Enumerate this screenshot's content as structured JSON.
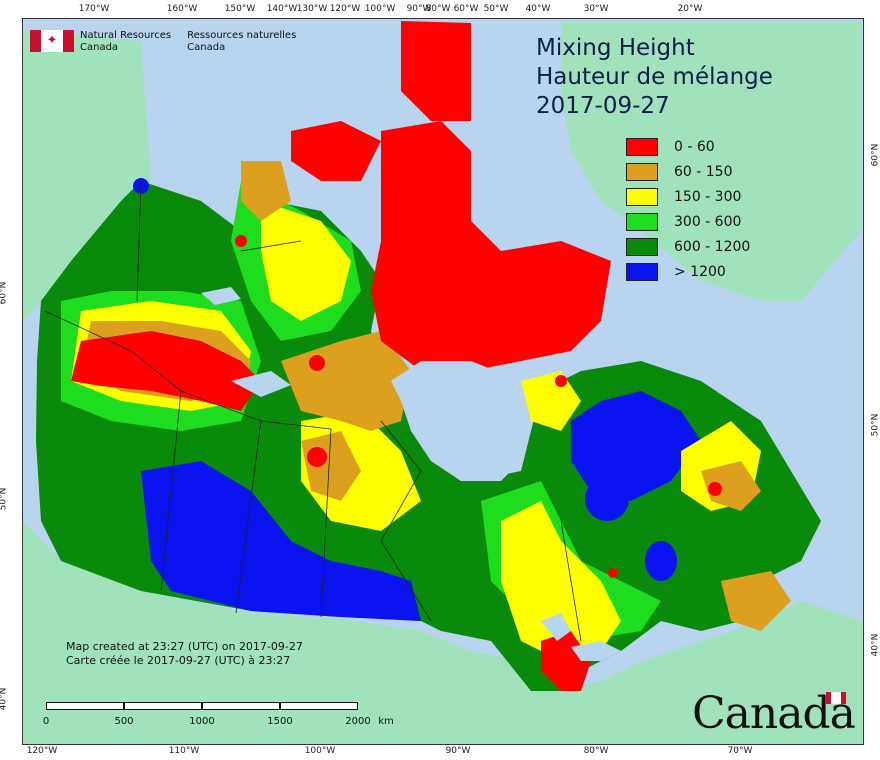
{
  "agency": {
    "english": [
      "Natural Resources",
      "Canada"
    ],
    "french": [
      "Ressources naturelles",
      "Canada"
    ]
  },
  "title": {
    "line1": "Mixing Height",
    "line2": "Hauteur de mélange",
    "date": "2017-09-27"
  },
  "legend": [
    {
      "label": "0 - 60",
      "color": "#ff0000"
    },
    {
      "label": "60 - 150",
      "color": "#dca01e"
    },
    {
      "label": "150 - 300",
      "color": "#ffff00"
    },
    {
      "label": "300 - 600",
      "color": "#1edc1e"
    },
    {
      "label": "600 - 1200",
      "color": "#0a8a0a"
    },
    {
      "label": "> 1200",
      "color": "#0a14f0"
    }
  ],
  "credits": {
    "line1": "Map created at 23:27 (UTC) on 2017-09-27",
    "line2": "Carte créée le 2017-09-27 (UTC) à 23:27"
  },
  "scale": {
    "labels": [
      "0",
      "500",
      "1000",
      "1500",
      "2000"
    ],
    "unit": "km"
  },
  "wordmark": "Canada",
  "ticks": {
    "top": [
      "170°W",
      "160°W",
      "150°W",
      "140°W",
      "130°W",
      "120°W",
      "100°W",
      "90°W",
      "80°W",
      "60°W",
      "50°W",
      "40°W",
      "30°W",
      "20°W"
    ],
    "bottom": [
      "120°W",
      "110°W",
      "100°W",
      "90°W",
      "80°W",
      "70°W"
    ],
    "left": [
      "60°N",
      "50°N",
      "40°N"
    ],
    "right": [
      "60°N",
      "50°N",
      "40°N"
    ]
  },
  "colors": {
    "ocean": "#b8d4ee",
    "land_other": "#9fe2bc"
  }
}
